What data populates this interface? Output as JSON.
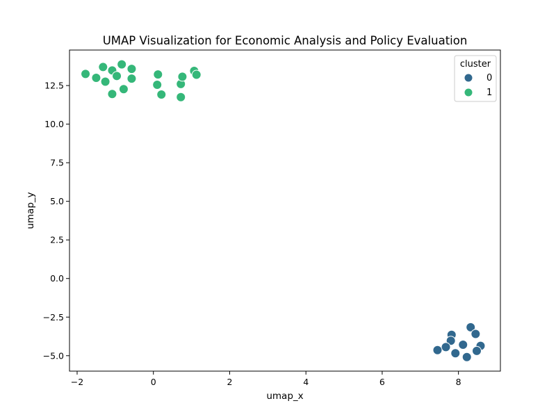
{
  "chart_data": {
    "type": "scatter",
    "title": "UMAP Visualization for Economic Analysis and Policy Evaluation",
    "xlabel": "umap_x",
    "ylabel": "umap_y",
    "xlim": [
      -2.2,
      9.1
    ],
    "ylim": [
      -6.0,
      14.8
    ],
    "xticks": [
      -2,
      0,
      2,
      4,
      6,
      8
    ],
    "yticks": [
      -5.0,
      -2.5,
      0.0,
      2.5,
      5.0,
      7.5,
      10.0,
      12.5
    ],
    "xtick_labels": [
      "−2",
      "0",
      "2",
      "4",
      "6",
      "8"
    ],
    "ytick_labels": [
      "−5.0",
      "−2.5",
      "0.0",
      "2.5",
      "5.0",
      "7.5",
      "10.0",
      "12.5"
    ],
    "grid": false,
    "legend": {
      "title": "cluster",
      "position": "upper right"
    },
    "series": [
      {
        "name": "0",
        "color": "#31688e",
        "points": [
          [
            8.32,
            -3.16
          ],
          [
            8.45,
            -3.59
          ],
          [
            7.82,
            -3.65
          ],
          [
            7.8,
            -4.03
          ],
          [
            8.12,
            -4.29
          ],
          [
            7.67,
            -4.44
          ],
          [
            7.45,
            -4.64
          ],
          [
            8.58,
            -4.36
          ],
          [
            8.48,
            -4.69
          ],
          [
            7.92,
            -4.84
          ],
          [
            8.22,
            -5.09
          ]
        ]
      },
      {
        "name": "1",
        "color": "#35b779",
        "points": [
          [
            -1.78,
            13.25
          ],
          [
            -1.5,
            13.0
          ],
          [
            -1.32,
            13.7
          ],
          [
            -1.26,
            12.75
          ],
          [
            -1.08,
            13.48
          ],
          [
            -1.08,
            11.95
          ],
          [
            -0.96,
            13.12
          ],
          [
            -0.83,
            13.87
          ],
          [
            -0.78,
            12.27
          ],
          [
            -0.57,
            13.58
          ],
          [
            -0.57,
            12.95
          ],
          [
            0.12,
            13.22
          ],
          [
            0.1,
            12.55
          ],
          [
            0.21,
            11.92
          ],
          [
            0.72,
            12.6
          ],
          [
            0.76,
            13.07
          ],
          [
            0.72,
            11.75
          ],
          [
            1.07,
            13.45
          ],
          [
            1.13,
            13.2
          ]
        ]
      }
    ]
  }
}
